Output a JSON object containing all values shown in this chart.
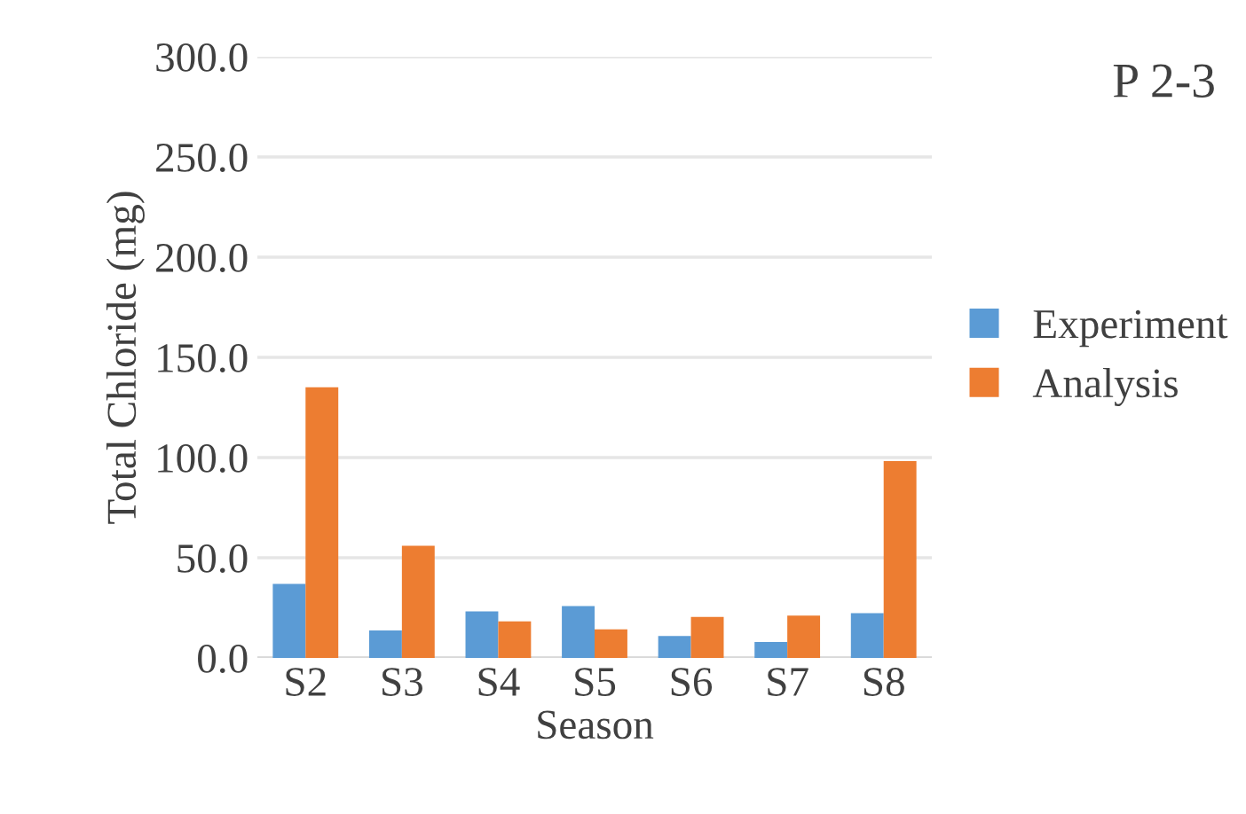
{
  "chart_data": {
    "type": "bar",
    "title": "P 2-3",
    "xlabel": "Season",
    "ylabel": "Total Chloride (mg)",
    "categories": [
      "S2",
      "S3",
      "S4",
      "S5",
      "S6",
      "S7",
      "S8"
    ],
    "series": [
      {
        "name": "Experiment",
        "color": "#5b9bd5",
        "values": [
          36.9,
          13.7,
          23.2,
          25.9,
          11.0,
          8.0,
          22.3
        ]
      },
      {
        "name": "Analysis",
        "color": "#ed7d31",
        "values": [
          135.1,
          56.0,
          18.2,
          14.3,
          20.5,
          21.1,
          98.2
        ]
      }
    ],
    "ylim": [
      0,
      300
    ],
    "yticks": [
      {
        "value": 0,
        "label": "0.0"
      },
      {
        "value": 50,
        "label": "50.0"
      },
      {
        "value": 100,
        "label": "100.0"
      },
      {
        "value": 150,
        "label": "150.0"
      },
      {
        "value": 200,
        "label": "200.0"
      },
      {
        "value": 250,
        "label": "250.0"
      },
      {
        "value": 300,
        "label": "300.0"
      }
    ],
    "grid": "y",
    "legend": "right"
  }
}
